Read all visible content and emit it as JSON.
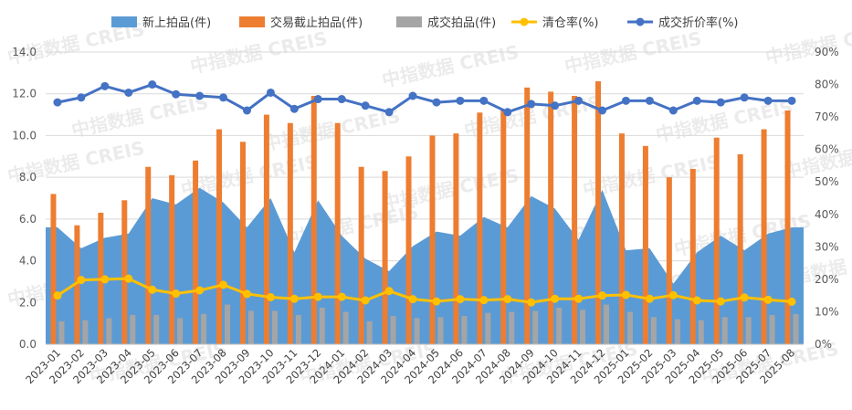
{
  "chart_data": {
    "type": "combo",
    "legend_position": "top",
    "grid": true,
    "watermark": "中指数据 CREIS",
    "categories": [
      "2023-01",
      "2023-02",
      "2023-03",
      "2023-04",
      "2023-05",
      "2023-06",
      "2023-07",
      "2023-08",
      "2023-09",
      "2023-10",
      "2023-11",
      "2023-12",
      "2024-01",
      "2024-02",
      "2024-03",
      "2024-04",
      "2024-05",
      "2024-06",
      "2024-07",
      "2024-08",
      "2024-09",
      "2024-10",
      "2024-11",
      "2024-12",
      "2025-01",
      "2025-02",
      "2025-03",
      "2025-04",
      "2025-05",
      "2025-06",
      "2025-07",
      "2025-08"
    ],
    "y_left": {
      "min": 0,
      "max": 14,
      "step": 2,
      "tick_labels": [
        "0.0",
        "2.0",
        "4.0",
        "6.0",
        "8.0",
        "10.0",
        "12.0",
        "14.0"
      ]
    },
    "y_right": {
      "min": 0,
      "max": 90,
      "step": 10,
      "tick_labels": [
        "0%",
        "10%",
        "20%",
        "30%",
        "40%",
        "50%",
        "60%",
        "70%",
        "80%",
        "90%"
      ]
    },
    "series": [
      {
        "name": "新上拍品(件)",
        "kind": "area",
        "axis": "left",
        "color": "#5b9bd5",
        "values": [
          5.6,
          4.6,
          5.1,
          5.3,
          7.0,
          6.7,
          7.5,
          6.8,
          5.6,
          7.0,
          4.4,
          6.9,
          5.2,
          4.1,
          3.5,
          4.7,
          5.4,
          5.2,
          6.1,
          5.6,
          7.1,
          6.5,
          5.0,
          7.4,
          4.5,
          4.6,
          2.9,
          4.4,
          5.2,
          4.5,
          5.3,
          5.6
        ]
      },
      {
        "name": "交易截止拍品(件)",
        "kind": "bar",
        "axis": "left",
        "color": "#ed7d31",
        "values": [
          7.2,
          5.7,
          6.3,
          6.9,
          8.5,
          8.1,
          8.8,
          10.3,
          9.7,
          11.0,
          10.6,
          11.9,
          10.6,
          8.5,
          8.3,
          9.0,
          10.0,
          10.1,
          11.1,
          11.2,
          12.3,
          12.1,
          11.9,
          12.6,
          10.1,
          9.5,
          8.0,
          8.4,
          9.9,
          9.1,
          10.3,
          11.2
        ]
      },
      {
        "name": "成交拍品(件)",
        "kind": "bar",
        "axis": "left",
        "color": "#a5a5a5",
        "values": [
          1.1,
          1.15,
          1.25,
          1.4,
          1.4,
          1.25,
          1.45,
          1.9,
          1.6,
          1.6,
          1.4,
          1.75,
          1.55,
          1.1,
          1.35,
          1.25,
          1.3,
          1.35,
          1.5,
          1.55,
          1.6,
          1.75,
          1.65,
          1.9,
          1.55,
          1.3,
          1.2,
          1.15,
          1.3,
          1.3,
          1.4,
          1.45
        ]
      },
      {
        "name": "清仓率(%)",
        "kind": "line",
        "axis": "right",
        "color": "#ffc000",
        "values": [
          15.0,
          19.8,
          20.0,
          20.2,
          16.8,
          15.6,
          16.6,
          18.3,
          15.5,
          14.5,
          14.0,
          14.6,
          14.6,
          13.5,
          16.4,
          13.9,
          13.2,
          13.9,
          13.6,
          13.9,
          12.9,
          14.0,
          14.0,
          15.0,
          15.2,
          14.0,
          15.1,
          13.5,
          13.2,
          14.4,
          13.7,
          13.1
        ]
      },
      {
        "name": "成交折价率(%)",
        "kind": "line",
        "axis": "right",
        "color": "#4472c4",
        "values": [
          74.5,
          76.0,
          79.5,
          77.5,
          80.0,
          77.0,
          76.5,
          76.0,
          72.0,
          77.5,
          72.5,
          75.5,
          75.5,
          73.5,
          71.5,
          76.5,
          74.5,
          75.0,
          75.0,
          71.5,
          74.0,
          73.5,
          75.0,
          72.0,
          75.0,
          75.0,
          72.0,
          75.0,
          74.5,
          76.0,
          75.0,
          75.0
        ]
      }
    ]
  }
}
